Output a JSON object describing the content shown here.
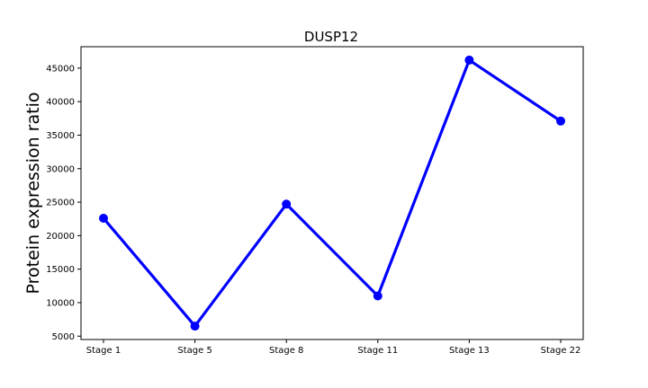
{
  "chart_data": {
    "type": "line",
    "title": "DUSP12",
    "xlabel": "",
    "ylabel": "Protein expression ratio",
    "categories": [
      "Stage 1",
      "Stage 5",
      "Stage 8",
      "Stage 11",
      "Stage 13",
      "Stage 22"
    ],
    "series": [
      {
        "values": [
          22600,
          6500,
          24700,
          11000,
          46200,
          37100
        ],
        "color": "#0000ff"
      }
    ],
    "yticks": [
      5000,
      10000,
      15000,
      20000,
      25000,
      30000,
      35000,
      40000,
      45000
    ],
    "ytick_labels": [
      "5000",
      "10000",
      "15000",
      "20000",
      "25000",
      "30000",
      "35000",
      "40000",
      "45000"
    ],
    "ylim": [
      4500,
      48200
    ],
    "grid": false,
    "legend": "none"
  }
}
